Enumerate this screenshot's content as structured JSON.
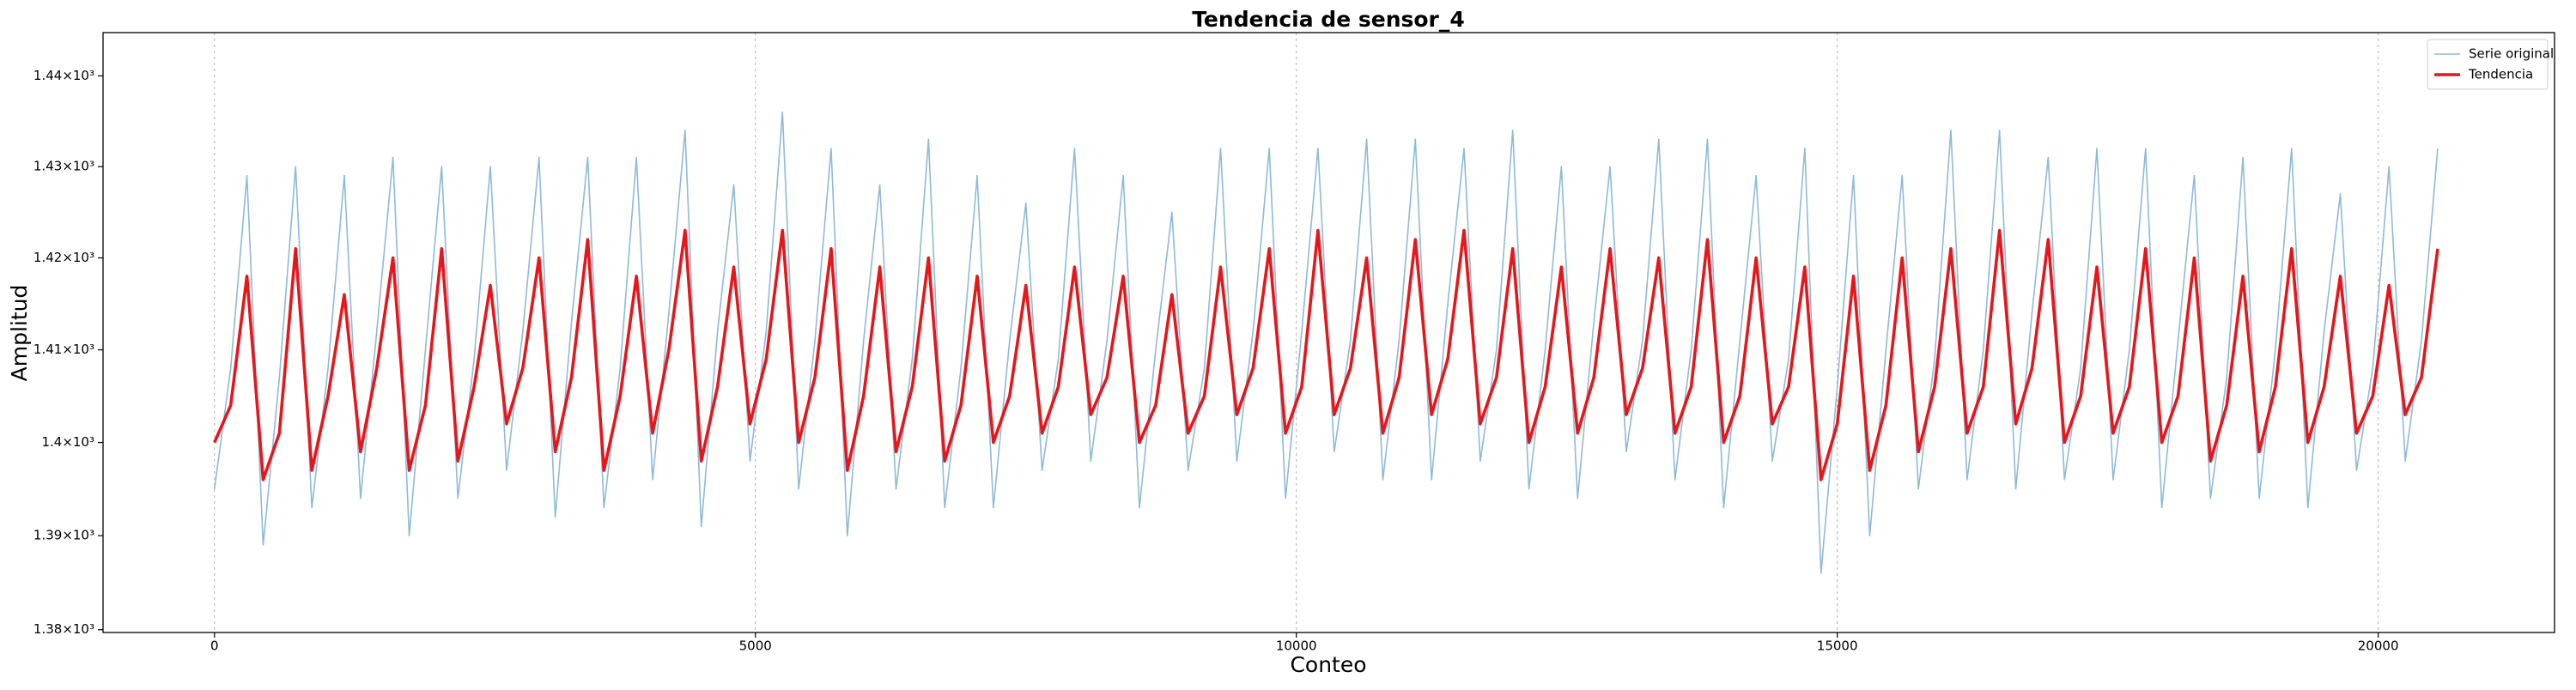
{
  "chart_data": {
    "type": "line",
    "title": "Tendencia de sensor_4",
    "xlabel": "Conteo",
    "ylabel": "Amplitud",
    "y_scale": "log",
    "grid": "x",
    "legend": "upper right",
    "xlim": [
      -1030,
      21630
    ],
    "ylim": [
      1379.7,
      1444.8
    ],
    "xticks": [
      0,
      5000,
      10000,
      15000,
      20000
    ],
    "yticks": [
      {
        "value": 1380,
        "label": "1.38×10³"
      },
      {
        "value": 1390,
        "label": "1.39×10³"
      },
      {
        "value": 1400,
        "label": "1.4×10³"
      },
      {
        "value": 1410,
        "label": "1.41×10³"
      },
      {
        "value": 1420,
        "label": "1.42×10³"
      },
      {
        "value": 1430,
        "label": "1.43×10³"
      },
      {
        "value": 1440,
        "label": "1.44×10³"
      }
    ],
    "x": [
      0,
      150,
      300,
      450,
      600,
      750,
      900,
      1050,
      1200,
      1350,
      1500,
      1650,
      1800,
      1950,
      2100,
      2250,
      2400,
      2550,
      2700,
      2850,
      3000,
      3150,
      3300,
      3450,
      3600,
      3750,
      3900,
      4050,
      4200,
      4350,
      4500,
      4650,
      4800,
      4950,
      5100,
      5250,
      5400,
      5550,
      5700,
      5850,
      6000,
      6150,
      6300,
      6450,
      6600,
      6750,
      6900,
      7050,
      7200,
      7350,
      7500,
      7650,
      7800,
      7950,
      8100,
      8250,
      8400,
      8550,
      8700,
      8850,
      9000,
      9150,
      9300,
      9450,
      9600,
      9750,
      9900,
      10050,
      10200,
      10350,
      10500,
      10650,
      10800,
      10950,
      11100,
      11250,
      11400,
      11550,
      11700,
      11850,
      12000,
      12150,
      12300,
      12450,
      12600,
      12750,
      12900,
      13050,
      13200,
      13350,
      13500,
      13650,
      13800,
      13950,
      14100,
      14250,
      14400,
      14550,
      14700,
      14850,
      15000,
      15150,
      15300,
      15450,
      15600,
      15750,
      15900,
      16050,
      16200,
      16350,
      16500,
      16650,
      16800,
      16950,
      17100,
      17250,
      17400,
      17550,
      17700,
      17850,
      18000,
      18150,
      18300,
      18450,
      18600,
      18750,
      18900,
      19050,
      19200,
      19350,
      19500,
      19650,
      19800,
      19950,
      20100,
      20250,
      20400,
      20550
    ],
    "series": [
      {
        "name": "Serie original",
        "color": "#8ebad9",
        "width": 1.6,
        "values": [
          1395,
          1408,
          1429,
          1389,
          1407,
          1430,
          1393,
          1408,
          1429,
          1394,
          1412,
          1431,
          1390,
          1410,
          1430,
          1394,
          1409,
          1430,
          1397,
          1412,
          1431,
          1392,
          1413,
          1431,
          1393,
          1408,
          1431,
          1396,
          1414,
          1434,
          1391,
          1412,
          1428,
          1398,
          1412,
          1436,
          1395,
          1411,
          1432,
          1390,
          1411,
          1428,
          1395,
          1409,
          1433,
          1393,
          1408,
          1429,
          1393,
          1411,
          1426,
          1397,
          1409,
          1432,
          1398,
          1411,
          1429,
          1393,
          1410,
          1425,
          1397,
          1408,
          1432,
          1398,
          1412,
          1432,
          1394,
          1412,
          1432,
          1399,
          1411,
          1433,
          1396,
          1411,
          1433,
          1396,
          1415,
          1432,
          1398,
          1410,
          1434,
          1395,
          1410,
          1430,
          1394,
          1413,
          1430,
          1399,
          1411,
          1433,
          1396,
          1410,
          1433,
          1393,
          1411,
          1429,
          1398,
          1409,
          1432,
          1386,
          1406,
          1429,
          1390,
          1410,
          1429,
          1395,
          1409,
          1434,
          1396,
          1410,
          1434,
          1395,
          1414,
          1431,
          1396,
          1408,
          1432,
          1396,
          1410,
          1432,
          1393,
          1411,
          1429,
          1394,
          1407,
          1431,
          1394,
          1410,
          1432,
          1393,
          1412,
          1427,
          1397,
          1408,
          1430,
          1398,
          1411,
          1432
        ]
      },
      {
        "name": "Tendencia",
        "color": "#e8161b",
        "width": 3.6,
        "values": [
          1400,
          1404,
          1418,
          1396,
          1401,
          1421,
          1397,
          1405,
          1416,
          1399,
          1408,
          1420,
          1397,
          1404,
          1421,
          1398,
          1406,
          1417,
          1402,
          1408,
          1420,
          1399,
          1407,
          1422,
          1397,
          1405,
          1418,
          1401,
          1410,
          1423,
          1398,
          1406,
          1419,
          1402,
          1409,
          1423,
          1400,
          1407,
          1421,
          1397,
          1405,
          1419,
          1399,
          1406,
          1420,
          1398,
          1404,
          1418,
          1400,
          1405,
          1417,
          1401,
          1406,
          1419,
          1403,
          1407,
          1418,
          1400,
          1404,
          1416,
          1401,
          1405,
          1419,
          1403,
          1408,
          1421,
          1401,
          1406,
          1423,
          1403,
          1408,
          1420,
          1401,
          1407,
          1422,
          1403,
          1409,
          1423,
          1402,
          1407,
          1421,
          1400,
          1406,
          1419,
          1401,
          1407,
          1421,
          1403,
          1408,
          1420,
          1401,
          1406,
          1422,
          1400,
          1405,
          1420,
          1402,
          1406,
          1419,
          1396,
          1402,
          1418,
          1397,
          1404,
          1420,
          1399,
          1406,
          1421,
          1401,
          1406,
          1423,
          1402,
          1408,
          1422,
          1400,
          1405,
          1419,
          1401,
          1406,
          1421,
          1400,
          1405,
          1420,
          1398,
          1404,
          1418,
          1399,
          1406,
          1421,
          1400,
          1406,
          1418,
          1401,
          1405,
          1417,
          1403,
          1407,
          1421
        ]
      }
    ]
  }
}
